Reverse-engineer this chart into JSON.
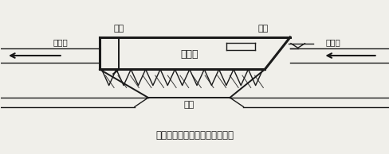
{
  "title": "一体化氧化沟沉淀船结构示意图",
  "label_stern": "船尾",
  "label_bow": "船首",
  "label_settling": "沉淀船",
  "label_funnel": "漏斗",
  "label_oxidation_left": "氧化沟",
  "label_oxidation_right": "氧化沟",
  "bg_color": "#f0efea",
  "line_color": "#1a1a1a",
  "fig_width": 4.89,
  "fig_height": 1.94,
  "dpi": 100
}
